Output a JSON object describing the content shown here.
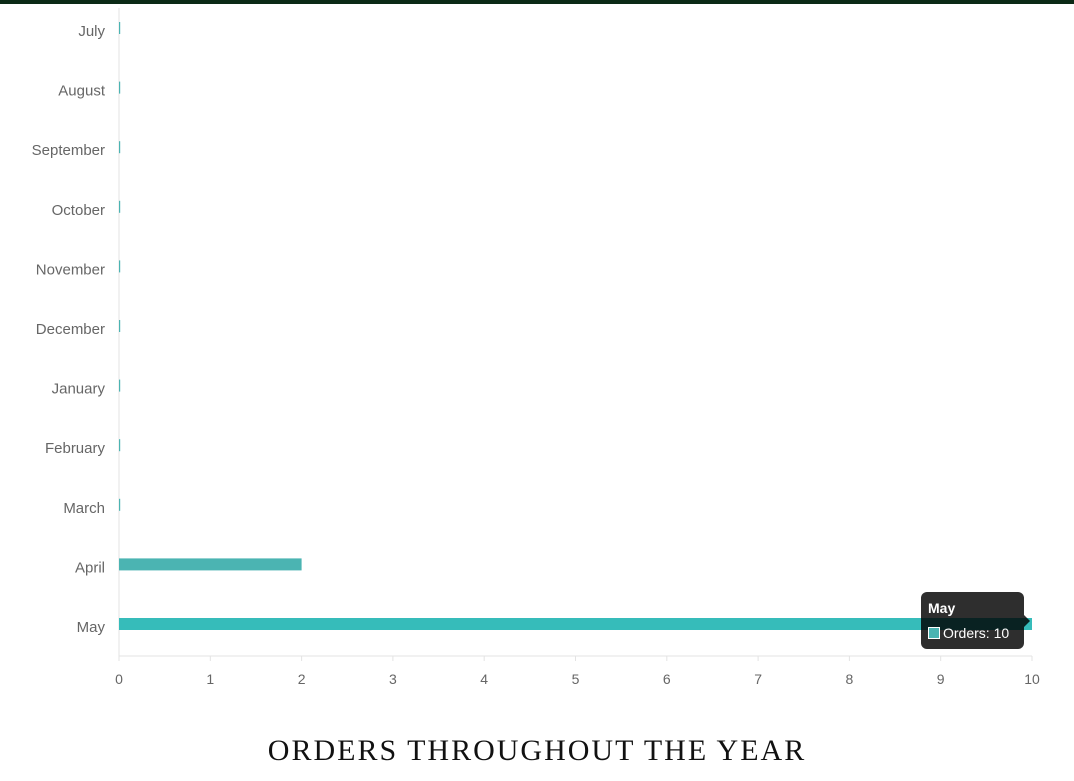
{
  "chart_data": {
    "type": "bar",
    "orientation": "horizontal",
    "categories": [
      "July",
      "August",
      "September",
      "October",
      "November",
      "December",
      "January",
      "February",
      "March",
      "April",
      "May"
    ],
    "series": [
      {
        "name": "Orders",
        "values": [
          0,
          0,
          0,
          0,
          0,
          0,
          0,
          0,
          0,
          2,
          10
        ]
      }
    ],
    "xlim": [
      0,
      10
    ],
    "x_ticks": [
      "0",
      "1",
      "2",
      "3",
      "4",
      "5",
      "6",
      "7",
      "8",
      "9",
      "10"
    ],
    "grid": false,
    "bar_color": "#4bb4b2",
    "highlight_color": "#36bcba"
  },
  "tooltip": {
    "title": "May",
    "text": "Orders: 10",
    "swatch_color": "#4bb4b2"
  },
  "page": {
    "title": "ORDERS THROUGHOUT THE YEAR"
  }
}
